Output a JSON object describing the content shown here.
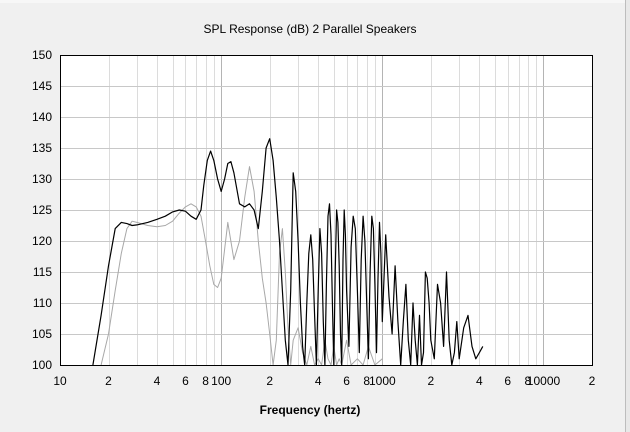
{
  "chart_data": {
    "type": "line",
    "title": "SPL Response (dB)   2 Parallel Speakers",
    "xlabel": "Frequency (hertz)",
    "ylabel": "",
    "x_scale": "log",
    "xlim": [
      10,
      20000
    ],
    "ylim": [
      100,
      150
    ],
    "y_ticks": [
      100,
      105,
      110,
      115,
      120,
      125,
      130,
      135,
      140,
      145,
      150
    ],
    "x_tick_labels": [
      {
        "value": 10,
        "label": "10"
      },
      {
        "value": 20,
        "label": "2"
      },
      {
        "value": 40,
        "label": "4"
      },
      {
        "value": 60,
        "label": "6"
      },
      {
        "value": 80,
        "label": "8"
      },
      {
        "value": 100,
        "label": "100"
      },
      {
        "value": 200,
        "label": "2"
      },
      {
        "value": 400,
        "label": "4"
      },
      {
        "value": 600,
        "label": "6"
      },
      {
        "value": 800,
        "label": "8"
      },
      {
        "value": 1000,
        "label": "1000"
      },
      {
        "value": 2000,
        "label": "2"
      },
      {
        "value": 4000,
        "label": "4"
      },
      {
        "value": 6000,
        "label": "6"
      },
      {
        "value": 8000,
        "label": "8"
      },
      {
        "value": 10000,
        "label": "10000"
      },
      {
        "value": 20000,
        "label": "2"
      }
    ],
    "grid": true,
    "series": [
      {
        "color": "#000000",
        "x": [
          16,
          18,
          20,
          22,
          24,
          26,
          28,
          30,
          35,
          40,
          45,
          50,
          55,
          60,
          65,
          70,
          75,
          78,
          82,
          86,
          90,
          95,
          100,
          105,
          110,
          115,
          120,
          130,
          140,
          150,
          160,
          170,
          180,
          190,
          200,
          210,
          220,
          230,
          240,
          250,
          260,
          270,
          280,
          290,
          300,
          310,
          320,
          330,
          340,
          350,
          360,
          370,
          380,
          390,
          400,
          410,
          420,
          430,
          440,
          450,
          460,
          470,
          480,
          490,
          500,
          510,
          520,
          530,
          540,
          550,
          560,
          570,
          580,
          590,
          600,
          620,
          640,
          660,
          680,
          700,
          720,
          740,
          760,
          780,
          800,
          820,
          840,
          860,
          880,
          900,
          920,
          940,
          960,
          980,
          1000,
          1050,
          1100,
          1150,
          1200,
          1250,
          1300,
          1350,
          1400,
          1450,
          1500,
          1550,
          1600,
          1650,
          1700,
          1750,
          1800,
          1850,
          1900,
          1950,
          2000,
          2100,
          2200,
          2300,
          2400,
          2500,
          2600,
          2700,
          2800,
          2900,
          3000,
          3200,
          3400,
          3600,
          3800,
          4000,
          4200
        ],
        "values": [
          100,
          108,
          116,
          122,
          123,
          122.8,
          122.5,
          122.6,
          123,
          123.5,
          124,
          124.7,
          125,
          124.8,
          124,
          123.5,
          125,
          129,
          133,
          134.5,
          133,
          130,
          128,
          130,
          132.5,
          132.8,
          131,
          126,
          125.5,
          126,
          125,
          122,
          128,
          135,
          136.5,
          133,
          127,
          120,
          112,
          104,
          100,
          112,
          131,
          128,
          120,
          110,
          103,
          100,
          110,
          118,
          121,
          117,
          108,
          100,
          112,
          122,
          118,
          107,
          100,
          113,
          124,
          126,
          121,
          110,
          100,
          115,
          125,
          123,
          116,
          105,
          100,
          117,
          125,
          121,
          112,
          103,
          119,
          124,
          122,
          112,
          102,
          117,
          124,
          120,
          110,
          101,
          115,
          124,
          122,
          113,
          102,
          114,
          123,
          118,
          107,
          121,
          111,
          105,
          116,
          107,
          100,
          107,
          113,
          104,
          100,
          110,
          104,
          100,
          108,
          100,
          102,
          115,
          114,
          110,
          104,
          101,
          113,
          110,
          103,
          115,
          104,
          100,
          102,
          107,
          101,
          106,
          108,
          103,
          101,
          102,
          103
        ]
      },
      {
        "color": "#a8a8a8",
        "x": [
          18,
          20,
          22,
          24,
          26,
          28,
          30,
          35,
          40,
          45,
          50,
          55,
          60,
          65,
          70,
          75,
          80,
          85,
          90,
          95,
          100,
          110,
          120,
          130,
          140,
          150,
          160,
          170,
          180,
          190,
          200,
          210,
          220,
          230,
          240,
          250,
          260,
          270,
          280,
          300,
          320,
          340,
          360,
          380,
          400,
          420,
          440,
          460,
          480,
          500,
          520,
          540,
          560,
          600,
          640,
          700,
          760,
          820,
          900,
          1000
        ],
        "values": [
          100,
          105,
          112,
          118,
          122,
          123.2,
          123,
          122.5,
          122.3,
          122.5,
          123.2,
          124.5,
          125.5,
          126,
          125.5,
          124,
          120,
          116,
          113,
          112.5,
          114,
          123,
          117,
          120,
          127,
          132,
          128,
          120,
          114,
          110,
          105,
          100,
          104,
          118,
          122,
          115,
          106,
          100,
          104,
          106,
          102,
          100,
          103,
          100,
          101,
          100,
          104,
          101,
          100,
          103,
          100,
          101,
          100,
          104,
          100,
          101,
          100,
          103,
          100,
          101
        ]
      }
    ]
  }
}
